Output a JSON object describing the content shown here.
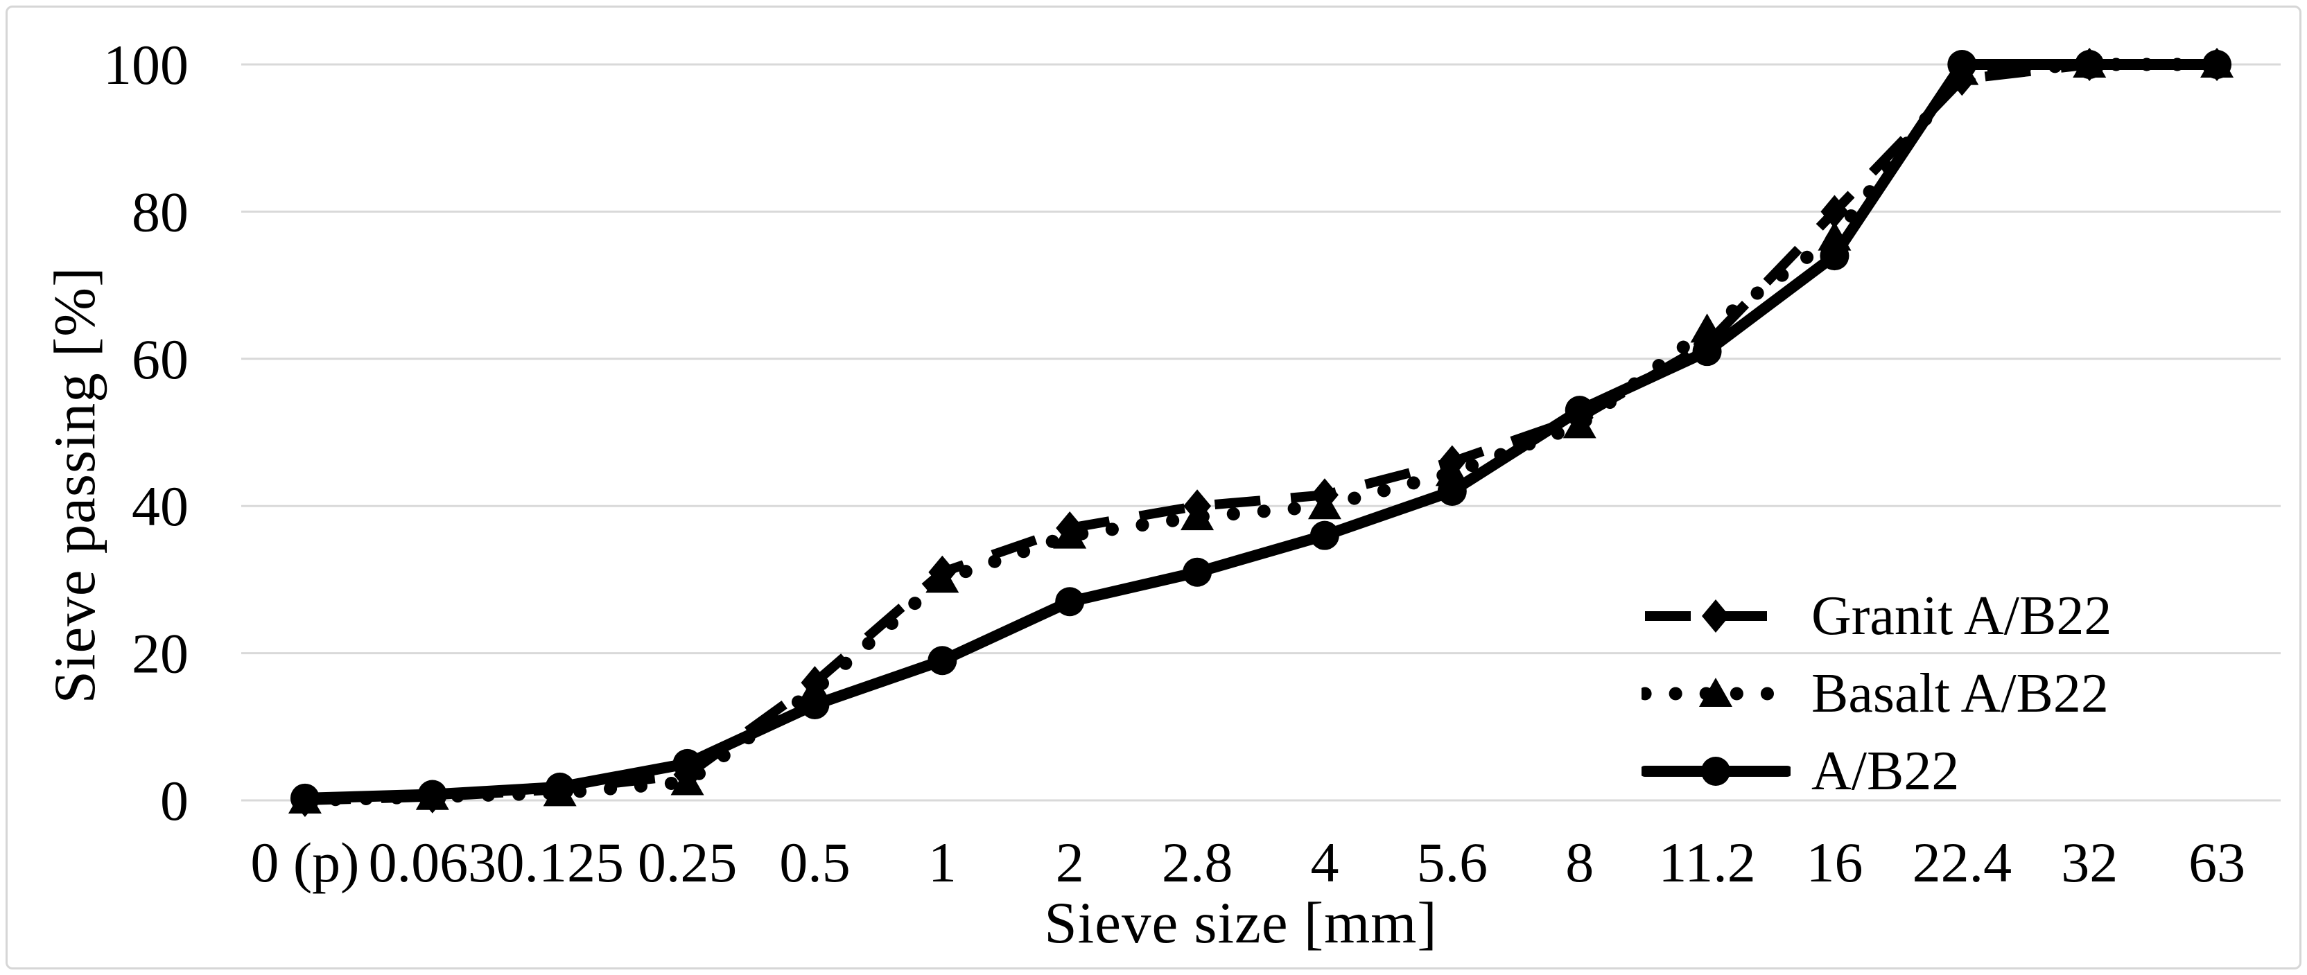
{
  "chart_data": {
    "type": "line",
    "title": "",
    "xlabel": "Sieve size [mm]",
    "ylabel": "Sieve passing [%]",
    "categories": [
      "0 (p)",
      "0.063",
      "0.125",
      "0.25",
      "0.5",
      "1",
      "2",
      "2.8",
      "4",
      "5.6",
      "8",
      "11.2",
      "16",
      "22.4",
      "32",
      "63"
    ],
    "yticks": [
      0,
      20,
      40,
      60,
      80,
      100
    ],
    "ylim": [
      0,
      100
    ],
    "grid": "horizontal-only",
    "legend_position": "inside-lower-right",
    "series": [
      {
        "name": "Granit A/B22",
        "marker": "diamond",
        "line_style": "dashed",
        "values": [
          0,
          0.5,
          1.5,
          3.5,
          16,
          31,
          37,
          40,
          41.5,
          46,
          52,
          62,
          80,
          98,
          100,
          100
        ]
      },
      {
        "name": "Basalt A/B22",
        "marker": "triangle",
        "line_style": "dotted",
        "values": [
          0,
          0.5,
          1,
          2.5,
          15,
          30,
          36,
          38.5,
          40,
          44.5,
          51,
          64,
          76.5,
          99,
          100,
          100
        ]
      },
      {
        "name": "A/B22",
        "marker": "circle",
        "line_style": "solid",
        "values": [
          0.3,
          0.8,
          1.8,
          5,
          13,
          19,
          27,
          31,
          36,
          42,
          53,
          61,
          74,
          100,
          100,
          100
        ]
      }
    ],
    "colors": {
      "series_line": "#000000",
      "grid_line": "#d9d9d9",
      "border": "#d6d6d6",
      "background": "#ffffff",
      "text": "#000000"
    }
  }
}
